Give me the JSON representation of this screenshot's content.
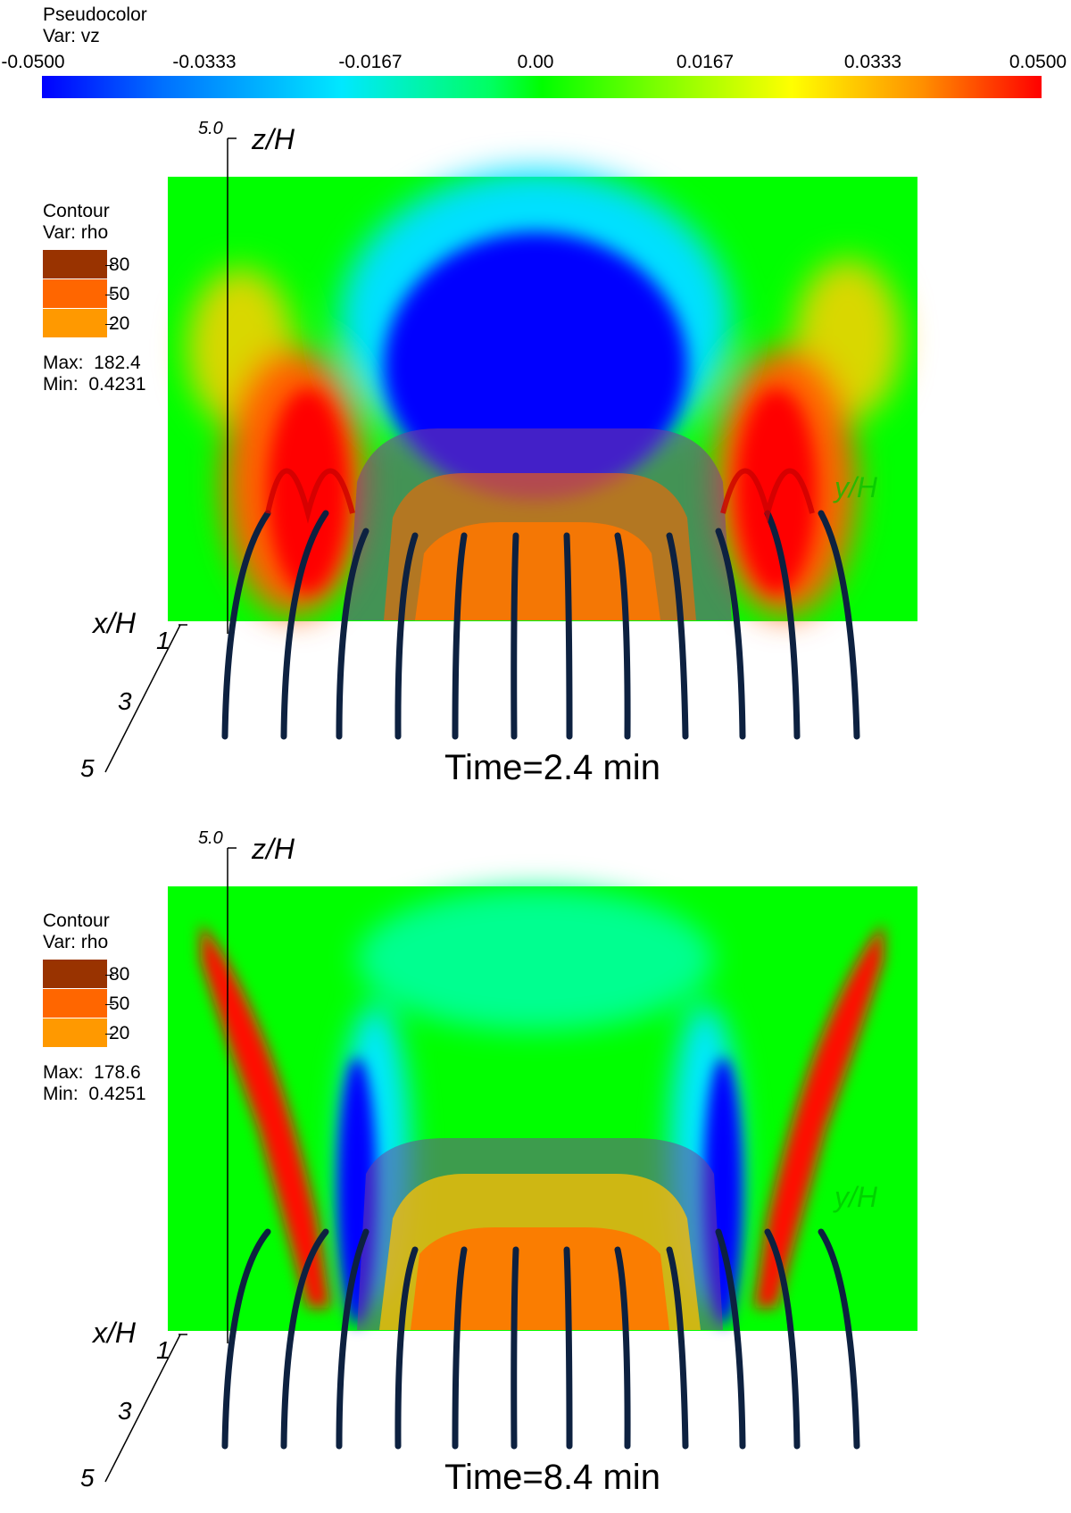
{
  "pseudocolor": {
    "title": "Pseudocolor",
    "var": "Var: vz",
    "ticks": [
      "-0.0500",
      "-0.0333",
      "-0.0167",
      "0.00",
      "0.0167",
      "0.0333",
      "0.0500"
    ]
  },
  "panels": [
    {
      "contour_title": "Contour",
      "contour_var": "Var: rho",
      "levels": [
        "80",
        "50",
        "20"
      ],
      "max_label": "Max:  182.4",
      "min_label": "Min:  0.4231",
      "time": "Time=2.4 min",
      "z_axis": "z/H",
      "x_axis": "x/H",
      "y_axis": "y/H",
      "z_top": "5.0",
      "x_ticks": [
        "1",
        "3",
        "5"
      ]
    },
    {
      "contour_title": "Contour",
      "contour_var": "Var: rho",
      "levels": [
        "80",
        "50",
        "20"
      ],
      "max_label": "Max:  178.6",
      "min_label": "Min:  0.4251",
      "time": "Time=8.4 min",
      "z_axis": "z/H",
      "x_axis": "x/H",
      "y_axis": "y/H",
      "z_top": "5.0",
      "x_ticks": [
        "1",
        "3",
        "5"
      ]
    }
  ],
  "colors": {
    "contour_80": "#993300",
    "contour_50": "#ff6600",
    "contour_20": "#ff9900",
    "field_line": "#0d2140"
  }
}
